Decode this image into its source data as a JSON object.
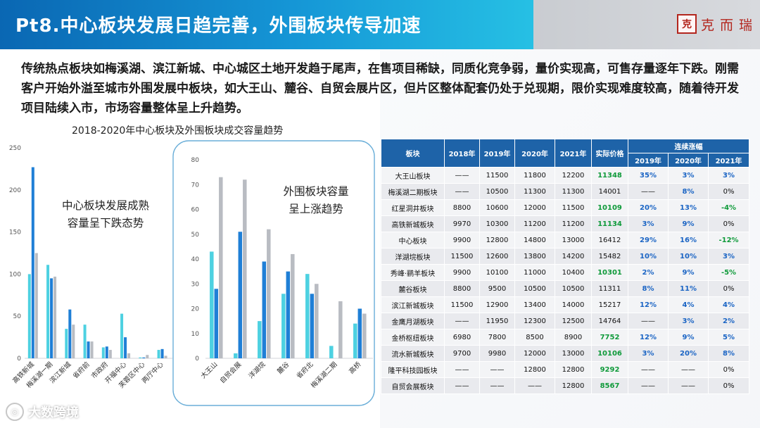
{
  "header": {
    "title": "Pt8.中心板块发展日趋完善，外围板块传导加速",
    "brand_logo_char": "克",
    "brand_name": "克而瑞"
  },
  "intro": "传统热点板块如梅溪湖、滨江新城、中心城区土地开发趋于尾声，在售项目稀缺，同质化竞争弱，量价实现高，可售存量逐年下跌。刚需客户开始外溢至城市外围发展中板块，如大王山、麓谷、自贸会展片区，但片区整体配套仍处于兑现期，限价实现难度较高，随着待开发项目陆续入市，市场容量整体呈上升趋势。",
  "chart_title": "2018-2020年中心板块及外围板块成交容量趋势",
  "watermark": "大数跨境",
  "colors": {
    "s2018": "#4dd1e1",
    "s2019": "#1f7fd6",
    "s2020": "#b9bcc2",
    "header_blue": "#0a67b3",
    "table_header": "#1e63a8"
  },
  "chart_data": [
    {
      "type": "bar",
      "categories": [
        "高铁新城",
        "梅溪湖一期",
        "滨江新城",
        "省府前",
        "市政府",
        "开福中心",
        "芙蓉区中心",
        "两厅中心"
      ],
      "series": [
        {
          "values": [
            100,
            111,
            35,
            40,
            13,
            53,
            1,
            10
          ]
        },
        {
          "values": [
            227,
            95,
            58,
            20,
            14,
            25,
            1,
            11
          ]
        },
        {
          "values": [
            125,
            97,
            40,
            20,
            10,
            6,
            4,
            3
          ]
        }
      ],
      "ylim": [
        0,
        250
      ],
      "yticks": [
        0,
        50,
        100,
        150,
        200,
        250
      ],
      "annotation": [
        "中心板块发展成熟",
        "容量呈下跌态势"
      ]
    },
    {
      "type": "bar",
      "categories": [
        "大王山",
        "自贸会展",
        "洋湖垸",
        "麓谷",
        "省府北",
        "梅溪湖二期",
        "高桥"
      ],
      "series": [
        {
          "values": [
            43,
            2,
            15,
            26,
            34,
            5,
            14
          ]
        },
        {
          "values": [
            28,
            51,
            39,
            35,
            26,
            0,
            20
          ]
        },
        {
          "values": [
            73,
            72,
            52,
            42,
            30,
            23,
            18
          ]
        }
      ],
      "ylim": [
        0,
        80
      ],
      "yticks": [
        0,
        10,
        20,
        30,
        40,
        50,
        60,
        70,
        80
      ],
      "annotation": [
        "外围板块容量",
        "呈上涨趋势"
      ]
    }
  ],
  "table": {
    "headers": {
      "block": "板块",
      "y2018": "2018年",
      "y2019": "2019年",
      "y2020": "2020年",
      "y2021": "2021年",
      "price": "实际价格",
      "growth": "连续涨幅",
      "g2019": "2019年",
      "g2020": "2020年",
      "g2021": "2021年"
    },
    "rows": [
      {
        "block": "大王山板块",
        "y2018": "——",
        "y2019": "11500",
        "y2020": "11800",
        "y2021": "12200",
        "price": "11348",
        "g2019": "35%",
        "g2020": "3%",
        "g2021": "3%"
      },
      {
        "block": "梅溪湖二期板块",
        "y2018": "——",
        "y2019": "10500",
        "y2020": "11300",
        "y2021": "11300",
        "price": "14001",
        "g2019": "——",
        "g2020": "8%",
        "g2021": "0%"
      },
      {
        "block": "红星洞井板块",
        "y2018": "8800",
        "y2019": "10600",
        "y2020": "12000",
        "y2021": "11500",
        "price": "10109",
        "g2019": "20%",
        "g2020": "13%",
        "g2021": "-4%"
      },
      {
        "block": "高铁新城板块",
        "y2018": "9970",
        "y2019": "10300",
        "y2020": "11200",
        "y2021": "11200",
        "price": "11134",
        "g2019": "3%",
        "g2020": "9%",
        "g2021": "0%"
      },
      {
        "block": "中心板块",
        "y2018": "9900",
        "y2019": "12800",
        "y2020": "14800",
        "y2021": "13000",
        "price": "16412",
        "g2019": "29%",
        "g2020": "16%",
        "g2021": "-12%"
      },
      {
        "block": "洋湖垸板块",
        "y2018": "11500",
        "y2019": "12600",
        "y2020": "13800",
        "y2021": "14200",
        "price": "15482",
        "g2019": "10%",
        "g2020": "10%",
        "g2021": "3%"
      },
      {
        "block": "秀峰·鹂羊板块",
        "y2018": "9900",
        "y2019": "10100",
        "y2020": "11000",
        "y2021": "10400",
        "price": "10301",
        "g2019": "2%",
        "g2020": "9%",
        "g2021": "-5%"
      },
      {
        "block": "麓谷板块",
        "y2018": "8800",
        "y2019": "9500",
        "y2020": "10500",
        "y2021": "10500",
        "price": "11311",
        "g2019": "8%",
        "g2020": "11%",
        "g2021": "0%"
      },
      {
        "block": "滨江新城板块",
        "y2018": "11500",
        "y2019": "12900",
        "y2020": "13400",
        "y2021": "14000",
        "price": "15217",
        "g2019": "12%",
        "g2020": "4%",
        "g2021": "4%"
      },
      {
        "block": "金鹰月湖板块",
        "y2018": "——",
        "y2019": "11950",
        "y2020": "12300",
        "y2021": "12500",
        "price": "14764",
        "g2019": "——",
        "g2020": "3%",
        "g2021": "2%"
      },
      {
        "block": "金桥枢纽板块",
        "y2018": "6980",
        "y2019": "7800",
        "y2020": "8500",
        "y2021": "8900",
        "price": "7752",
        "g2019": "12%",
        "g2020": "9%",
        "g2021": "5%"
      },
      {
        "block": "流水新城板块",
        "y2018": "9700",
        "y2019": "9980",
        "y2020": "12000",
        "y2021": "13000",
        "price": "10106",
        "g2019": "3%",
        "g2020": "20%",
        "g2021": "8%"
      },
      {
        "block": "隆平科技园板块",
        "y2018": "——",
        "y2019": "——",
        "y2020": "12800",
        "y2021": "12800",
        "price": "9292",
        "g2019": "——",
        "g2020": "——",
        "g2021": "0%"
      },
      {
        "block": "自贸会展板块",
        "y2018": "——",
        "y2019": "——",
        "y2020": "——",
        "y2021": "12800",
        "price": "8567",
        "g2019": "——",
        "g2020": "——",
        "g2021": "0%"
      }
    ],
    "price_green_rows": [
      0,
      2,
      3,
      6,
      10,
      11,
      12,
      13
    ]
  }
}
